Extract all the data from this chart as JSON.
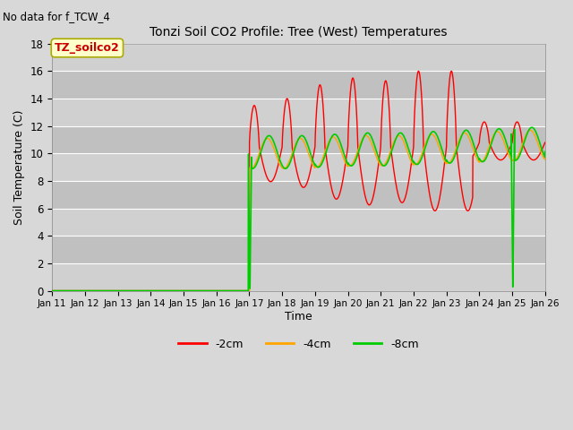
{
  "title": "Tonzi Soil CO2 Profile: Tree (West) Temperatures",
  "no_data_text": "No data for f_TCW_4",
  "ylabel": "Soil Temperature (C)",
  "xlabel": "Time",
  "ylim": [
    0,
    18
  ],
  "xlim": [
    0,
    15
  ],
  "figsize": [
    6.4,
    4.8
  ],
  "dpi": 100,
  "bg_color": "#d8d8d8",
  "plot_bg": "#d8d8d8",
  "grid_color": "#ffffff",
  "xtick_labels": [
    "Jan 11",
    "Jan 12",
    "Jan 13",
    "Jan 14",
    "Jan 15",
    "Jan 16",
    "Jan 17",
    "Jan 18",
    "Jan 19",
    "Jan 20",
    "Jan 21",
    "Jan 22",
    "Jan 23",
    "Jan 24",
    "Jan 25",
    "Jan 26"
  ],
  "colors": {
    "2cm": "#ff0000",
    "4cm": "#ffa500",
    "8cm": "#00cc00"
  },
  "legend": [
    {
      "label": "-2cm",
      "color": "#ff0000"
    },
    {
      "label": "-4cm",
      "color": "#ffa500"
    },
    {
      "label": "-8cm",
      "color": "#00cc00"
    }
  ],
  "annotation_box": {
    "text": "TZ_soilco2",
    "facecolor": "#ffffcc",
    "edgecolor": "#aaaa00",
    "fontsize": 9,
    "fontweight": "bold",
    "textcolor": "#cc0000"
  },
  "band_colors": [
    "#d0d0d0",
    "#c0c0c0"
  ],
  "ytick_vals": [
    0,
    2,
    4,
    6,
    8,
    10,
    12,
    14,
    16,
    18
  ]
}
